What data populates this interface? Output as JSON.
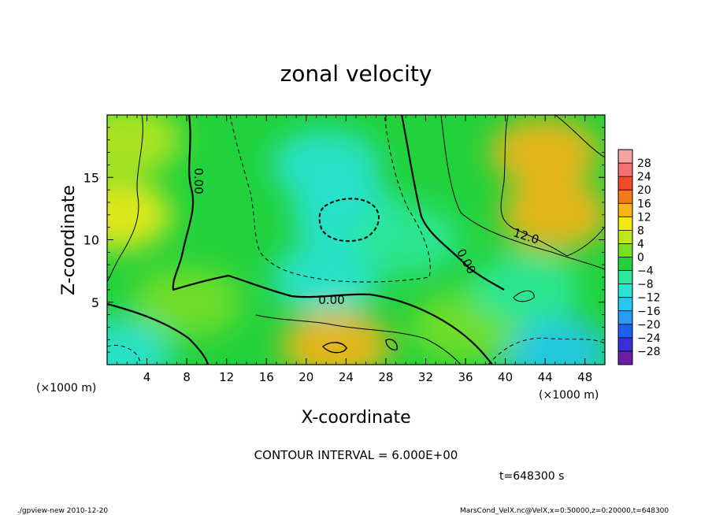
{
  "chart_data": {
    "type": "heatmap",
    "title": "zonal velocity",
    "xlabel": "X-coordinate",
    "ylabel": "Z-coordinate",
    "xunit": "(×1000 m)",
    "yunit": "(×1000 m)",
    "xlim": [
      0,
      50
    ],
    "ylim": [
      0,
      20
    ],
    "xticks": [
      4,
      8,
      12,
      16,
      20,
      24,
      28,
      32,
      36,
      40,
      44,
      48
    ],
    "yticks": [
      5,
      10,
      15
    ],
    "colorbar": {
      "levels": [
        -28,
        -24,
        -20,
        -16,
        -12,
        -8,
        -4,
        0,
        4,
        8,
        12,
        16,
        20,
        24,
        28
      ],
      "colors": [
        "#6b1ea8",
        "#3a2fd8",
        "#2060f0",
        "#2a9af5",
        "#23c8f0",
        "#29e3d5",
        "#2ee89a",
        "#22d23c",
        "#78de28",
        "#bde61e",
        "#f2ea14",
        "#f8b414",
        "#f77816",
        "#f24b26",
        "#f47272",
        "#f8a2a2"
      ]
    },
    "contour_labels": [
      "0.00",
      "0.00",
      "0.00",
      "12.0"
    ],
    "contour_interval": "CONTOUR INTERVAL = 6.000E+00",
    "time_label": "t=648300 s",
    "field_samples": [
      {
        "x": 2,
        "z": 18,
        "u": 4
      },
      {
        "x": 24,
        "z": 12,
        "u": -12
      },
      {
        "x": 22,
        "z": 16,
        "u": -9
      },
      {
        "x": 22,
        "z": 7,
        "u": -9
      },
      {
        "x": 30,
        "z": 10,
        "u": -8
      },
      {
        "x": 45,
        "z": 12,
        "u": 14
      },
      {
        "x": 44,
        "z": 17,
        "u": 12
      },
      {
        "x": 23,
        "z": 1.5,
        "u": 14
      },
      {
        "x": 45,
        "z": 1,
        "u": -16
      },
      {
        "x": 1,
        "z": 0.8,
        "u": -10
      },
      {
        "x": 1,
        "z": 12,
        "u": 9
      },
      {
        "x": 8,
        "z": 5,
        "u": 2
      },
      {
        "x": 36,
        "z": 3,
        "u": 1
      },
      {
        "x": 42,
        "z": 6,
        "u": -6
      }
    ]
  },
  "footer": {
    "left": "./gpview-new  2010-12-20",
    "right": "MarsCond_VelX.nc@VelX,x=0:50000,z=0:20000,t=648300"
  },
  "colors": {
    "frame": "#000000",
    "background": "#ffffff"
  }
}
